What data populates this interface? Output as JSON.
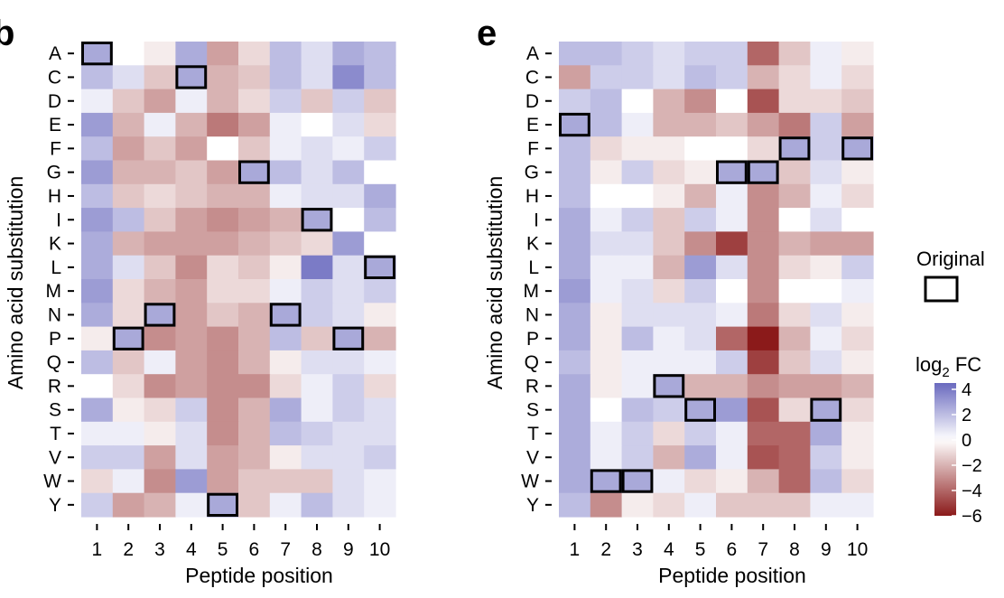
{
  "chart_data": [
    {
      "type": "heatmap",
      "panel": "b",
      "x": [
        1,
        2,
        3,
        4,
        5,
        6,
        7,
        8,
        9,
        10
      ],
      "y": [
        "A",
        "C",
        "D",
        "E",
        "F",
        "G",
        "H",
        "I",
        "K",
        "L",
        "M",
        "N",
        "P",
        "Q",
        "R",
        "S",
        "T",
        "V",
        "W",
        "Y"
      ],
      "xlabel": "Peptide position",
      "ylabel": "Amino acid substitution",
      "x_tick_labels": [
        "1",
        "2",
        "3",
        "4",
        "5",
        "6",
        "7",
        "8",
        "9",
        "10"
      ],
      "values": [
        [
          null,
          0.0,
          -0.5,
          2.5,
          -2.5,
          -1.0,
          2.0,
          1.0,
          2.5,
          2.0
        ],
        [
          2.0,
          1.0,
          -1.5,
          null,
          -2.0,
          -1.5,
          2.0,
          1.0,
          3.5,
          2.0
        ],
        [
          0.5,
          -1.5,
          -2.5,
          0.5,
          -2.0,
          -1.0,
          1.5,
          -1.5,
          1.5,
          -1.5
        ],
        [
          3.0,
          -2.0,
          0.5,
          -2.0,
          -3.5,
          -2.5,
          0.5,
          0.0,
          1.0,
          -1.0
        ],
        [
          2.0,
          -2.5,
          -1.5,
          -2.5,
          0.0,
          -1.5,
          0.5,
          1.0,
          0.5,
          1.5
        ],
        [
          3.0,
          -2.0,
          -2.0,
          -1.5,
          -2.5,
          null,
          2.0,
          1.0,
          2.0,
          0.0
        ],
        [
          2.0,
          -1.5,
          -1.0,
          -1.5,
          -2.0,
          -2.0,
          0.5,
          1.0,
          1.0,
          2.5
        ],
        [
          3.0,
          2.0,
          -1.5,
          -2.5,
          -3.0,
          -2.5,
          -2.0,
          null,
          0.0,
          2.0
        ],
        [
          2.5,
          -2.0,
          -2.5,
          -2.5,
          -2.5,
          -2.0,
          -1.5,
          -1.0,
          3.0,
          0.0
        ],
        [
          2.5,
          1.0,
          -1.5,
          -3.0,
          -1.0,
          -1.5,
          -0.5,
          4.0,
          1.0,
          null
        ],
        [
          3.0,
          -1.0,
          -2.0,
          -2.5,
          -1.0,
          -1.0,
          0.5,
          1.5,
          1.0,
          1.5
        ],
        [
          2.5,
          -1.0,
          null,
          -2.5,
          -1.5,
          -2.0,
          null,
          1.5,
          1.0,
          -0.5
        ],
        [
          -0.5,
          null,
          -3.0,
          -2.5,
          -3.0,
          -2.0,
          2.0,
          -1.5,
          null,
          -2.0
        ],
        [
          2.0,
          -1.5,
          0.5,
          -2.5,
          -3.0,
          -2.0,
          -0.5,
          1.0,
          1.0,
          0.5
        ],
        [
          0.0,
          -1.0,
          -3.0,
          -2.5,
          -3.0,
          -3.0,
          -1.0,
          0.5,
          1.5,
          -1.0
        ],
        [
          2.5,
          -0.5,
          -1.0,
          1.5,
          -3.0,
          -2.0,
          2.5,
          0.5,
          1.5,
          1.0
        ],
        [
          0.5,
          0.5,
          -0.5,
          1.0,
          -3.0,
          -2.0,
          2.0,
          1.5,
          1.0,
          1.0
        ],
        [
          1.5,
          1.5,
          -2.5,
          1.0,
          -2.5,
          -2.0,
          -0.5,
          1.0,
          1.0,
          1.5
        ],
        [
          -1.0,
          0.5,
          -3.0,
          3.0,
          -2.5,
          -1.5,
          -1.5,
          -1.5,
          1.0,
          0.5
        ],
        [
          1.5,
          -2.5,
          -2.0,
          0.5,
          null,
          -1.5,
          0.5,
          2.0,
          1.0,
          0.5
        ]
      ],
      "original_cells": [
        [
          1,
          "A"
        ],
        [
          4,
          "C"
        ],
        [
          6,
          "G"
        ],
        [
          8,
          "I"
        ],
        [
          10,
          "L"
        ],
        [
          3,
          "N"
        ],
        [
          7,
          "N"
        ],
        [
          2,
          "P"
        ],
        [
          9,
          "P"
        ],
        [
          5,
          "Y"
        ]
      ]
    },
    {
      "type": "heatmap",
      "panel": "e",
      "x": [
        1,
        2,
        3,
        4,
        5,
        6,
        7,
        8,
        9,
        10
      ],
      "y": [
        "A",
        "C",
        "D",
        "E",
        "F",
        "G",
        "H",
        "I",
        "K",
        "L",
        "M",
        "N",
        "P",
        "Q",
        "R",
        "S",
        "T",
        "V",
        "W",
        "Y"
      ],
      "xlabel": "Peptide position",
      "ylabel": "Amino acid substitution",
      "x_tick_labels": [
        "1",
        "2",
        "3",
        "4",
        "5",
        "6",
        "7",
        "8",
        "9",
        "10"
      ],
      "values": [
        [
          2.0,
          2.0,
          1.5,
          1.0,
          1.5,
          1.5,
          -4.0,
          -1.5,
          0.5,
          -0.5
        ],
        [
          -2.5,
          1.5,
          1.5,
          1.0,
          2.0,
          1.5,
          -2.0,
          -1.0,
          0.5,
          -1.0
        ],
        [
          1.5,
          2.0,
          0.0,
          -2.0,
          -3.0,
          0.0,
          -4.5,
          -1.0,
          -1.0,
          -1.5
        ],
        [
          null,
          2.0,
          0.5,
          -2.0,
          -2.0,
          -1.5,
          -2.5,
          -3.5,
          1.5,
          -2.5
        ],
        [
          2.0,
          -1.0,
          -0.5,
          -0.5,
          0.0,
          0.0,
          -1.0,
          null,
          1.5,
          null
        ],
        [
          2.0,
          -0.5,
          1.5,
          -1.0,
          -0.5,
          null,
          null,
          -1.5,
          1.0,
          -0.5
        ],
        [
          2.0,
          0.0,
          0.0,
          -0.5,
          -2.0,
          0.5,
          -3.0,
          -2.0,
          0.5,
          -1.0
        ],
        [
          2.5,
          0.5,
          1.5,
          -1.5,
          1.5,
          0.5,
          -3.0,
          0.0,
          1.0,
          0.0
        ],
        [
          2.5,
          1.0,
          1.0,
          -1.5,
          -3.0,
          -5.0,
          -3.0,
          -2.0,
          -2.5,
          -2.5
        ],
        [
          2.5,
          0.5,
          0.5,
          -2.0,
          3.0,
          1.0,
          -3.0,
          -1.0,
          -0.5,
          1.5
        ],
        [
          3.0,
          0.5,
          1.0,
          -1.0,
          1.5,
          0.0,
          -3.0,
          0.0,
          0.0,
          0.5
        ],
        [
          2.5,
          -0.5,
          1.0,
          1.0,
          1.0,
          0.5,
          -3.5,
          -1.0,
          1.0,
          -0.5
        ],
        [
          2.5,
          -0.5,
          2.0,
          0.5,
          1.0,
          -4.0,
          -6.0,
          -2.0,
          0.5,
          -1.0
        ],
        [
          2.0,
          -0.5,
          0.5,
          0.5,
          0.5,
          1.5,
          -5.0,
          -1.5,
          1.0,
          -0.5
        ],
        [
          2.5,
          -0.5,
          0.5,
          null,
          -2.0,
          -2.0,
          -3.0,
          -2.5,
          -2.5,
          -2.0
        ],
        [
          2.5,
          0.0,
          2.0,
          1.5,
          null,
          3.0,
          -4.5,
          -1.0,
          null,
          -1.0
        ],
        [
          2.5,
          0.5,
          1.5,
          -1.0,
          1.5,
          0.5,
          -4.0,
          -4.0,
          2.5,
          -0.5
        ],
        [
          2.5,
          0.5,
          1.5,
          -2.0,
          2.5,
          0.5,
          -4.5,
          -4.0,
          1.5,
          -0.5
        ],
        [
          2.5,
          null,
          null,
          0.5,
          -1.0,
          -0.5,
          -2.0,
          -4.0,
          2.0,
          -1.0
        ],
        [
          2.0,
          -3.0,
          -0.5,
          -1.0,
          0.5,
          -1.5,
          -1.5,
          -1.5,
          0.5,
          0.5
        ]
      ],
      "original_cells": [
        [
          1,
          "E"
        ],
        [
          8,
          "F"
        ],
        [
          10,
          "F"
        ],
        [
          6,
          "G"
        ],
        [
          7,
          "G"
        ],
        [
          4,
          "R"
        ],
        [
          5,
          "S"
        ],
        [
          9,
          "S"
        ],
        [
          2,
          "W"
        ],
        [
          3,
          "W"
        ]
      ]
    }
  ],
  "panels": {
    "b": {
      "letter": "b"
    },
    "e": {
      "letter": "e"
    }
  },
  "legend": {
    "original_label": "Original",
    "fc_title_base": "log",
    "fc_title_sub": "2",
    "fc_title_rest": " FC",
    "ticks": [
      "4",
      "2",
      "0",
      "−2",
      "−4",
      "−6"
    ],
    "tick_values": [
      4,
      2,
      0,
      -2,
      -4,
      -6
    ],
    "scale_range": [
      -6,
      4.5
    ]
  },
  "colors": {
    "high": "#6a6abf",
    "mid": "#ffffff",
    "low": "#8b1a1a",
    "original_fill": "#a9a9d9",
    "box_stroke": "#000000"
  }
}
